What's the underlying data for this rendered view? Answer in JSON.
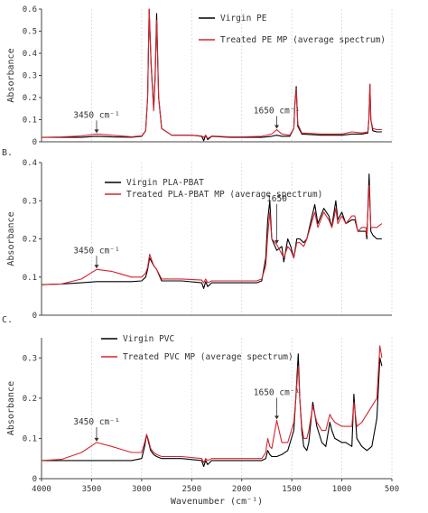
{
  "colors": {
    "virgin": "#000000",
    "treated": "#d62430",
    "axis": "#444444",
    "grid": "#cfd8e6"
  },
  "chart_data": [
    {
      "type": "line",
      "panel_label": "",
      "ylabel": "Absorbance",
      "ylim": [
        0,
        0.6
      ],
      "yticks": [
        "0",
        "0.1",
        "0.2",
        "0.3",
        "0.4",
        "0.5",
        "0.6"
      ],
      "xlim": [
        4000,
        500
      ],
      "legend": "top-right",
      "series": [
        {
          "name": "Virgin PE",
          "color": "#000000",
          "x": [
            4000,
            3800,
            3600,
            3450,
            3300,
            3100,
            3000,
            2960,
            2940,
            2925,
            2905,
            2880,
            2865,
            2850,
            2830,
            2800,
            2700,
            2500,
            2400,
            2380,
            2360,
            2340,
            2300,
            2100,
            2000,
            1800,
            1700,
            1650,
            1600,
            1520,
            1480,
            1470,
            1455,
            1440,
            1400,
            1200,
            1000,
            900,
            800,
            740,
            730,
            719,
            710,
            690,
            650,
            600
          ],
          "y": [
            0.02,
            0.02,
            0.02,
            0.025,
            0.022,
            0.021,
            0.025,
            0.05,
            0.2,
            0.6,
            0.35,
            0.15,
            0.3,
            0.58,
            0.2,
            0.06,
            0.03,
            0.03,
            0.025,
            0.005,
            0.03,
            0.01,
            0.025,
            0.02,
            0.02,
            0.02,
            0.025,
            0.03,
            0.025,
            0.025,
            0.06,
            0.17,
            0.25,
            0.07,
            0.035,
            0.03,
            0.03,
            0.035,
            0.035,
            0.04,
            0.1,
            0.26,
            0.1,
            0.05,
            0.045,
            0.045
          ]
        },
        {
          "name": "Treated PE MP (average spectrum)",
          "color": "#d62430",
          "x": [
            4000,
            3800,
            3600,
            3450,
            3300,
            3100,
            3000,
            2960,
            2940,
            2925,
            2905,
            2880,
            2865,
            2850,
            2830,
            2800,
            2700,
            2500,
            2400,
            2380,
            2360,
            2340,
            2300,
            2100,
            2000,
            1800,
            1700,
            1650,
            1600,
            1520,
            1480,
            1470,
            1455,
            1440,
            1400,
            1200,
            1000,
            900,
            800,
            740,
            730,
            719,
            710,
            690,
            650,
            600
          ],
          "y": [
            0.02,
            0.022,
            0.026,
            0.035,
            0.03,
            0.023,
            0.027,
            0.05,
            0.2,
            0.6,
            0.34,
            0.14,
            0.28,
            0.55,
            0.2,
            0.06,
            0.03,
            0.03,
            0.026,
            0.02,
            0.03,
            0.015,
            0.026,
            0.022,
            0.022,
            0.025,
            0.035,
            0.055,
            0.035,
            0.03,
            0.06,
            0.16,
            0.24,
            0.08,
            0.04,
            0.035,
            0.035,
            0.045,
            0.04,
            0.045,
            0.1,
            0.26,
            0.1,
            0.06,
            0.055,
            0.055
          ]
        }
      ],
      "annotations": [
        {
          "text": "3450 cm⁻¹",
          "x": 3450,
          "y": 0.035
        },
        {
          "text": "1650 cm⁻¹",
          "x": 1650,
          "y": 0.055
        }
      ]
    },
    {
      "type": "line",
      "panel_label": "B.",
      "ylabel": "Absorbance",
      "ylim": [
        0,
        0.4
      ],
      "yticks": [
        "0",
        "0.1",
        "0.2",
        "0.3",
        "0.4"
      ],
      "xlim": [
        4000,
        500
      ],
      "legend": "top-center",
      "series": [
        {
          "name": "Virgin PLA-PBAT",
          "color": "#000000",
          "x": [
            4000,
            3800,
            3600,
            3450,
            3300,
            3100,
            3000,
            2960,
            2940,
            2920,
            2880,
            2850,
            2800,
            2600,
            2400,
            2380,
            2360,
            2340,
            2300,
            2100,
            2000,
            1850,
            1800,
            1760,
            1740,
            1720,
            1700,
            1650,
            1600,
            1580,
            1540,
            1510,
            1480,
            1450,
            1420,
            1380,
            1350,
            1270,
            1240,
            1180,
            1130,
            1100,
            1090,
            1060,
            1040,
            1000,
            960,
            900,
            870,
            840,
            800,
            760,
            750,
            727,
            710,
            690,
            650,
            600
          ],
          "y": [
            0.08,
            0.082,
            0.085,
            0.088,
            0.088,
            0.088,
            0.09,
            0.1,
            0.12,
            0.15,
            0.13,
            0.12,
            0.09,
            0.09,
            0.085,
            0.07,
            0.088,
            0.075,
            0.085,
            0.085,
            0.085,
            0.085,
            0.09,
            0.15,
            0.25,
            0.3,
            0.2,
            0.17,
            0.18,
            0.14,
            0.2,
            0.18,
            0.15,
            0.2,
            0.2,
            0.19,
            0.2,
            0.29,
            0.24,
            0.28,
            0.26,
            0.23,
            0.25,
            0.3,
            0.25,
            0.27,
            0.24,
            0.25,
            0.25,
            0.22,
            0.22,
            0.22,
            0.2,
            0.37,
            0.22,
            0.21,
            0.2,
            0.2
          ]
        },
        {
          "name": "Treated PLA-PBAT MP (average spectrum)",
          "color": "#d62430",
          "x": [
            4000,
            3800,
            3600,
            3450,
            3300,
            3100,
            3000,
            2960,
            2940,
            2920,
            2880,
            2850,
            2800,
            2600,
            2400,
            2380,
            2360,
            2340,
            2300,
            2100,
            2000,
            1850,
            1800,
            1760,
            1740,
            1720,
            1700,
            1650,
            1600,
            1580,
            1540,
            1510,
            1480,
            1450,
            1420,
            1380,
            1350,
            1270,
            1240,
            1180,
            1130,
            1100,
            1090,
            1060,
            1040,
            1000,
            960,
            900,
            870,
            840,
            800,
            760,
            750,
            727,
            710,
            690,
            650,
            600
          ],
          "y": [
            0.08,
            0.082,
            0.095,
            0.12,
            0.115,
            0.1,
            0.1,
            0.11,
            0.125,
            0.16,
            0.13,
            0.12,
            0.095,
            0.095,
            0.092,
            0.085,
            0.095,
            0.085,
            0.09,
            0.09,
            0.09,
            0.09,
            0.095,
            0.13,
            0.21,
            0.27,
            0.2,
            0.185,
            0.16,
            0.15,
            0.18,
            0.17,
            0.15,
            0.19,
            0.19,
            0.18,
            0.2,
            0.27,
            0.23,
            0.27,
            0.25,
            0.23,
            0.24,
            0.28,
            0.24,
            0.26,
            0.24,
            0.26,
            0.26,
            0.22,
            0.23,
            0.23,
            0.21,
            0.34,
            0.23,
            0.23,
            0.23,
            0.24
          ]
        }
      ],
      "annotations": [
        {
          "text": "3450 cm⁻¹",
          "x": 3450,
          "y": 0.12
        },
        {
          "text": "1650",
          "x": 1650,
          "y": 0.185
        }
      ]
    },
    {
      "type": "line",
      "panel_label": "C.",
      "ylabel": "Absorbance",
      "ylim": [
        0,
        0.35
      ],
      "yticks": [
        "0",
        "0.1",
        "0.2",
        "0.3"
      ],
      "xlim": [
        4000,
        500
      ],
      "xlabel": "Wavenumber (cm⁻¹)",
      "xticks": [
        "4000",
        "3500",
        "3000",
        "2500",
        "2000",
        "1500",
        "1000",
        "500"
      ],
      "legend": "top-center",
      "series": [
        {
          "name": "Virgin PVC",
          "color": "#000000",
          "x": [
            4000,
            3800,
            3600,
            3450,
            3300,
            3100,
            3000,
            2970,
            2950,
            2930,
            2910,
            2880,
            2850,
            2800,
            2600,
            2400,
            2380,
            2360,
            2340,
            2300,
            2100,
            2000,
            1800,
            1760,
            1740,
            1720,
            1700,
            1650,
            1600,
            1540,
            1480,
            1460,
            1435,
            1420,
            1400,
            1380,
            1350,
            1330,
            1290,
            1250,
            1200,
            1160,
            1120,
            1100,
            1070,
            1000,
            960,
            900,
            880,
            850,
            800,
            750,
            700,
            650,
            620,
            600
          ],
          "y": [
            0.045,
            0.045,
            0.045,
            0.045,
            0.045,
            0.045,
            0.05,
            0.08,
            0.11,
            0.09,
            0.07,
            0.06,
            0.055,
            0.05,
            0.05,
            0.045,
            0.03,
            0.045,
            0.035,
            0.045,
            0.045,
            0.045,
            0.045,
            0.05,
            0.07,
            0.06,
            0.055,
            0.055,
            0.06,
            0.07,
            0.12,
            0.2,
            0.31,
            0.2,
            0.12,
            0.08,
            0.07,
            0.09,
            0.19,
            0.13,
            0.09,
            0.08,
            0.14,
            0.12,
            0.1,
            0.09,
            0.09,
            0.08,
            0.21,
            0.1,
            0.08,
            0.07,
            0.08,
            0.15,
            0.3,
            0.28
          ]
        },
        {
          "name": "Treated PVC MP (average spectrum)",
          "color": "#d62430",
          "x": [
            4000,
            3800,
            3600,
            3450,
            3300,
            3100,
            3000,
            2970,
            2950,
            2930,
            2910,
            2880,
            2850,
            2800,
            2600,
            2400,
            2380,
            2360,
            2340,
            2300,
            2100,
            2000,
            1800,
            1760,
            1740,
            1720,
            1700,
            1650,
            1600,
            1540,
            1480,
            1460,
            1435,
            1420,
            1400,
            1380,
            1350,
            1330,
            1290,
            1250,
            1200,
            1160,
            1120,
            1100,
            1070,
            1000,
            960,
            900,
            880,
            850,
            800,
            750,
            700,
            650,
            620,
            600
          ],
          "y": [
            0.045,
            0.048,
            0.065,
            0.09,
            0.08,
            0.065,
            0.065,
            0.09,
            0.11,
            0.095,
            0.075,
            0.065,
            0.06,
            0.055,
            0.055,
            0.05,
            0.04,
            0.05,
            0.045,
            0.05,
            0.05,
            0.05,
            0.05,
            0.065,
            0.1,
            0.08,
            0.075,
            0.145,
            0.09,
            0.09,
            0.14,
            0.2,
            0.28,
            0.2,
            0.13,
            0.1,
            0.1,
            0.12,
            0.18,
            0.14,
            0.12,
            0.12,
            0.16,
            0.15,
            0.14,
            0.13,
            0.13,
            0.13,
            0.19,
            0.13,
            0.14,
            0.16,
            0.18,
            0.2,
            0.33,
            0.3
          ]
        }
      ],
      "annotations": [
        {
          "text": "3450 cm⁻¹",
          "x": 3450,
          "y": 0.09
        },
        {
          "text": "1650 cm⁻¹",
          "x": 1650,
          "y": 0.145
        }
      ]
    }
  ]
}
